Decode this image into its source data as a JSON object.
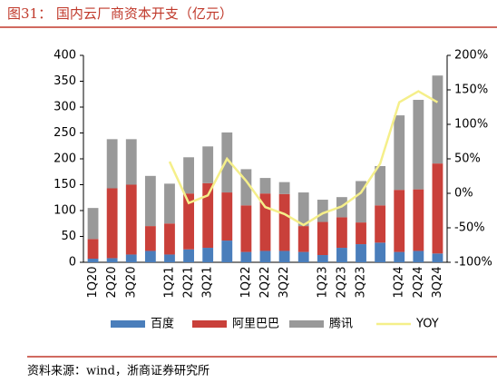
{
  "chart_data": {
    "type": "stacked_bar_line",
    "title": "图31：  国内云厂商资本开支（亿元）",
    "source": "资料来源：wind，浙商证券研究所",
    "categories": [
      "1Q20",
      "2Q20",
      "3Q20",
      null,
      "1Q21",
      "2Q21",
      "3Q21",
      null,
      "1Q22",
      "2Q22",
      "3Q22",
      null,
      "1Q23",
      "2Q23",
      "3Q23",
      null,
      "1Q24",
      "2Q24",
      "3Q24"
    ],
    "series": [
      {
        "name": "百度",
        "color": "#4a7ebb",
        "values": [
          7,
          8,
          15,
          22,
          15,
          25,
          28,
          42,
          20,
          22,
          22,
          20,
          14,
          28,
          35,
          38,
          20,
          22,
          17
        ]
      },
      {
        "name": "阿里巴巴",
        "color": "#c9403a",
        "values": [
          38,
          135,
          135,
          48,
          60,
          108,
          125,
          93,
          90,
          111,
          110,
          50,
          64,
          59,
          42,
          72,
          120,
          119,
          174
        ]
      },
      {
        "name": "腾讯",
        "color": "#999999",
        "values": [
          60,
          95,
          88,
          97,
          77,
          70,
          71,
          116,
          70,
          30,
          23,
          65,
          43,
          39,
          80,
          76,
          144,
          173,
          170
        ]
      },
      {
        "name": "YOY",
        "color": "#f5ef8a",
        "type": "line",
        "axis": "y2",
        "values": [
          null,
          null,
          null,
          null,
          46,
          -14,
          -3,
          50,
          18,
          -20,
          -30,
          -46,
          -29,
          -19,
          1,
          43,
          132,
          148,
          132
        ]
      }
    ],
    "ylim": [
      0,
      400
    ],
    "yticks": [
      0,
      50,
      100,
      150,
      200,
      250,
      300,
      350,
      400
    ],
    "y2lim": [
      -100,
      200
    ],
    "y2ticks": [
      {
        "value": -100,
        "label": "-100%"
      },
      {
        "value": -50,
        "label": "-50%"
      },
      {
        "value": 0,
        "label": "0%"
      },
      {
        "value": 50,
        "label": "50%"
      },
      {
        "value": 100,
        "label": "100%"
      },
      {
        "value": 150,
        "label": "150%"
      },
      {
        "value": 200,
        "label": "200%"
      }
    ]
  }
}
